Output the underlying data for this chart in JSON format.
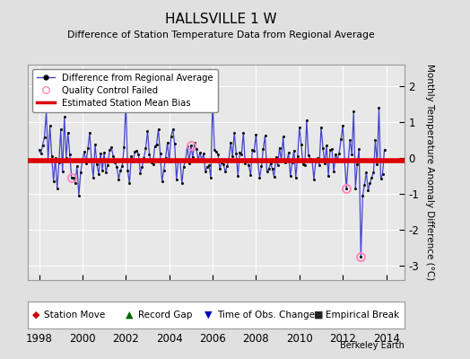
{
  "title": "HALLSVILLE 1 W",
  "subtitle": "Difference of Station Temperature Data from Regional Average",
  "ylabel": "Monthly Temperature Anomaly Difference (°C)",
  "xlim": [
    1997.5,
    2014.83
  ],
  "ylim": [
    -3.4,
    2.6
  ],
  "yticks": [
    -3,
    -2,
    -1,
    0,
    1,
    2
  ],
  "xticks": [
    1998,
    2000,
    2002,
    2004,
    2006,
    2008,
    2010,
    2012,
    2014
  ],
  "bias_level": -0.07,
  "line_color": "#4444cc",
  "dot_color": "#111111",
  "bias_color": "#dd0000",
  "qc_fail_color": "#ff88bb",
  "background_color": "#e0e0e0",
  "plot_bg": "#e8e8e8"
}
